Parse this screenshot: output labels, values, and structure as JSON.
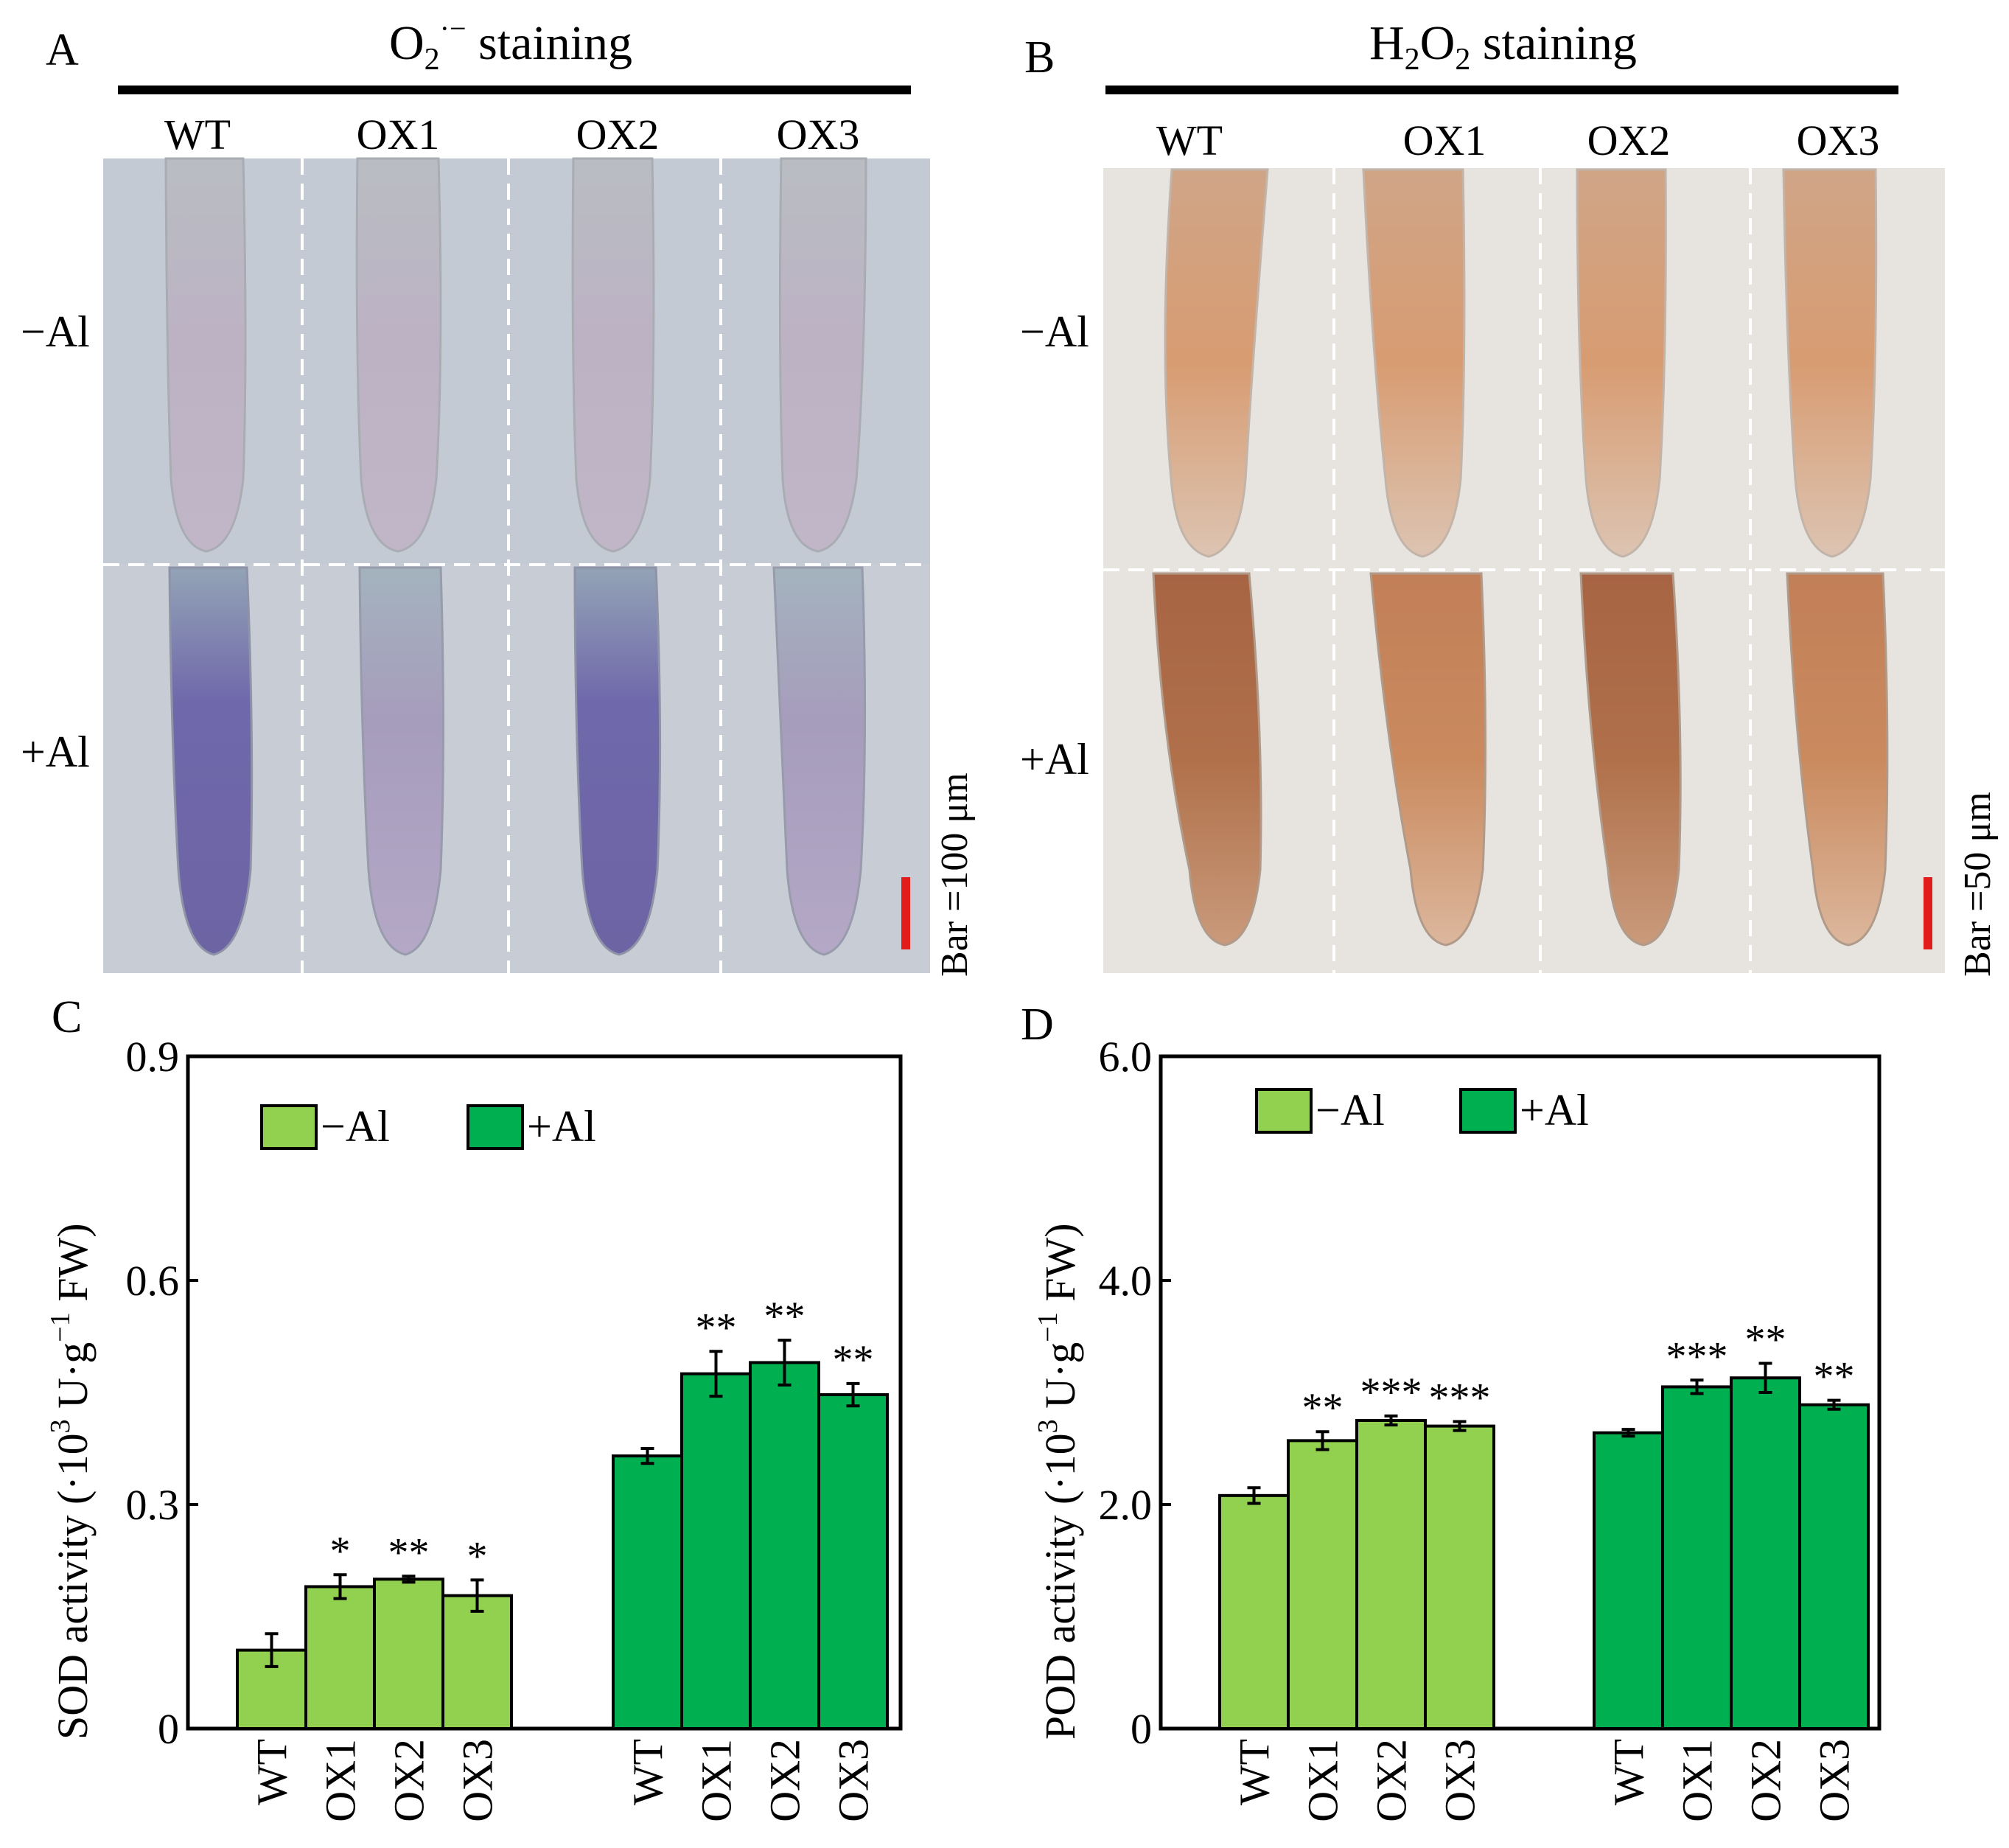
{
  "panel_a": {
    "letter": "A",
    "title_main": "O",
    "title_sub": "2",
    "title_sup": "·−",
    "title_rest": " staining",
    "columns": [
      "WT",
      "OX1",
      "OX2",
      "OX3"
    ],
    "rows": [
      "−Al",
      "+Al"
    ],
    "scale_label": "Bar =100 μm",
    "colors": {
      "minus_al": "#b4a8c6",
      "plus_al": "#6a62a6",
      "background": "#c6cbd6",
      "scale_bar": "#e21b1b"
    }
  },
  "panel_b": {
    "letter": "B",
    "title_main": "H",
    "title_sub1": "2",
    "title_mid": "O",
    "title_sub2": "2",
    "title_rest": " staining",
    "columns": [
      "WT",
      "OX1",
      "OX2",
      "OX3"
    ],
    "rows": [
      "−Al",
      "+Al"
    ],
    "scale_label": "Bar =50 μm",
    "colors": {
      "minus_al": "#d59a74",
      "plus_al": "#b06c45",
      "background": "#e6e2dc",
      "scale_bar": "#e21b1b"
    }
  },
  "chart_data": [
    {
      "type": "bar",
      "panel": "C",
      "groups": [
        "−Al",
        "+Al"
      ],
      "categories": [
        "WT",
        "OX1",
        "OX2",
        "OX3"
      ],
      "series": [
        {
          "name": "−Al",
          "color": "#92d050",
          "values": [
            0.105,
            0.19,
            0.2,
            0.178
          ],
          "errors": [
            0.022,
            0.016,
            0.004,
            0.021
          ],
          "significance": [
            "",
            "*",
            "**",
            "*"
          ]
        },
        {
          "name": "+Al",
          "color": "#00b050",
          "values": [
            0.365,
            0.475,
            0.49,
            0.447
          ],
          "errors": [
            0.01,
            0.03,
            0.03,
            0.015
          ],
          "significance": [
            "",
            "**",
            "**",
            "**"
          ]
        }
      ],
      "ylabel_main": "SOD activity (·10",
      "ylabel_sup1": "3",
      "ylabel_mid": " U·g",
      "ylabel_sup2": "−1",
      "ylabel_end": " FW)",
      "yticks": [
        "0",
        "0.3",
        "0.6",
        "0.9"
      ],
      "ylim": [
        0,
        0.9
      ],
      "legend_position": "top-left",
      "grid": false
    },
    {
      "type": "bar",
      "panel": "D",
      "groups": [
        "−Al",
        "+Al"
      ],
      "categories": [
        "WT",
        "OX1",
        "OX2",
        "OX3"
      ],
      "series": [
        {
          "name": "−Al",
          "color": "#92d050",
          "values": [
            2.08,
            2.57,
            2.75,
            2.7
          ],
          "errors": [
            0.07,
            0.08,
            0.04,
            0.04
          ],
          "significance": [
            "",
            "**",
            "***",
            "***"
          ]
        },
        {
          "name": "+Al",
          "color": "#00b050",
          "values": [
            2.64,
            3.05,
            3.13,
            2.89
          ],
          "errors": [
            0.03,
            0.06,
            0.13,
            0.04
          ],
          "significance": [
            "",
            "***",
            "**",
            "**"
          ]
        }
      ],
      "ylabel_main": "POD activity (·10",
      "ylabel_sup1": "3",
      "ylabel_mid": " U·g",
      "ylabel_sup2": "−1",
      "ylabel_end": " FW)",
      "yticks": [
        "0",
        "2.0",
        "4.0",
        "6.0"
      ],
      "ylim": [
        0,
        6.0
      ],
      "legend_position": "top-left",
      "grid": false
    }
  ]
}
